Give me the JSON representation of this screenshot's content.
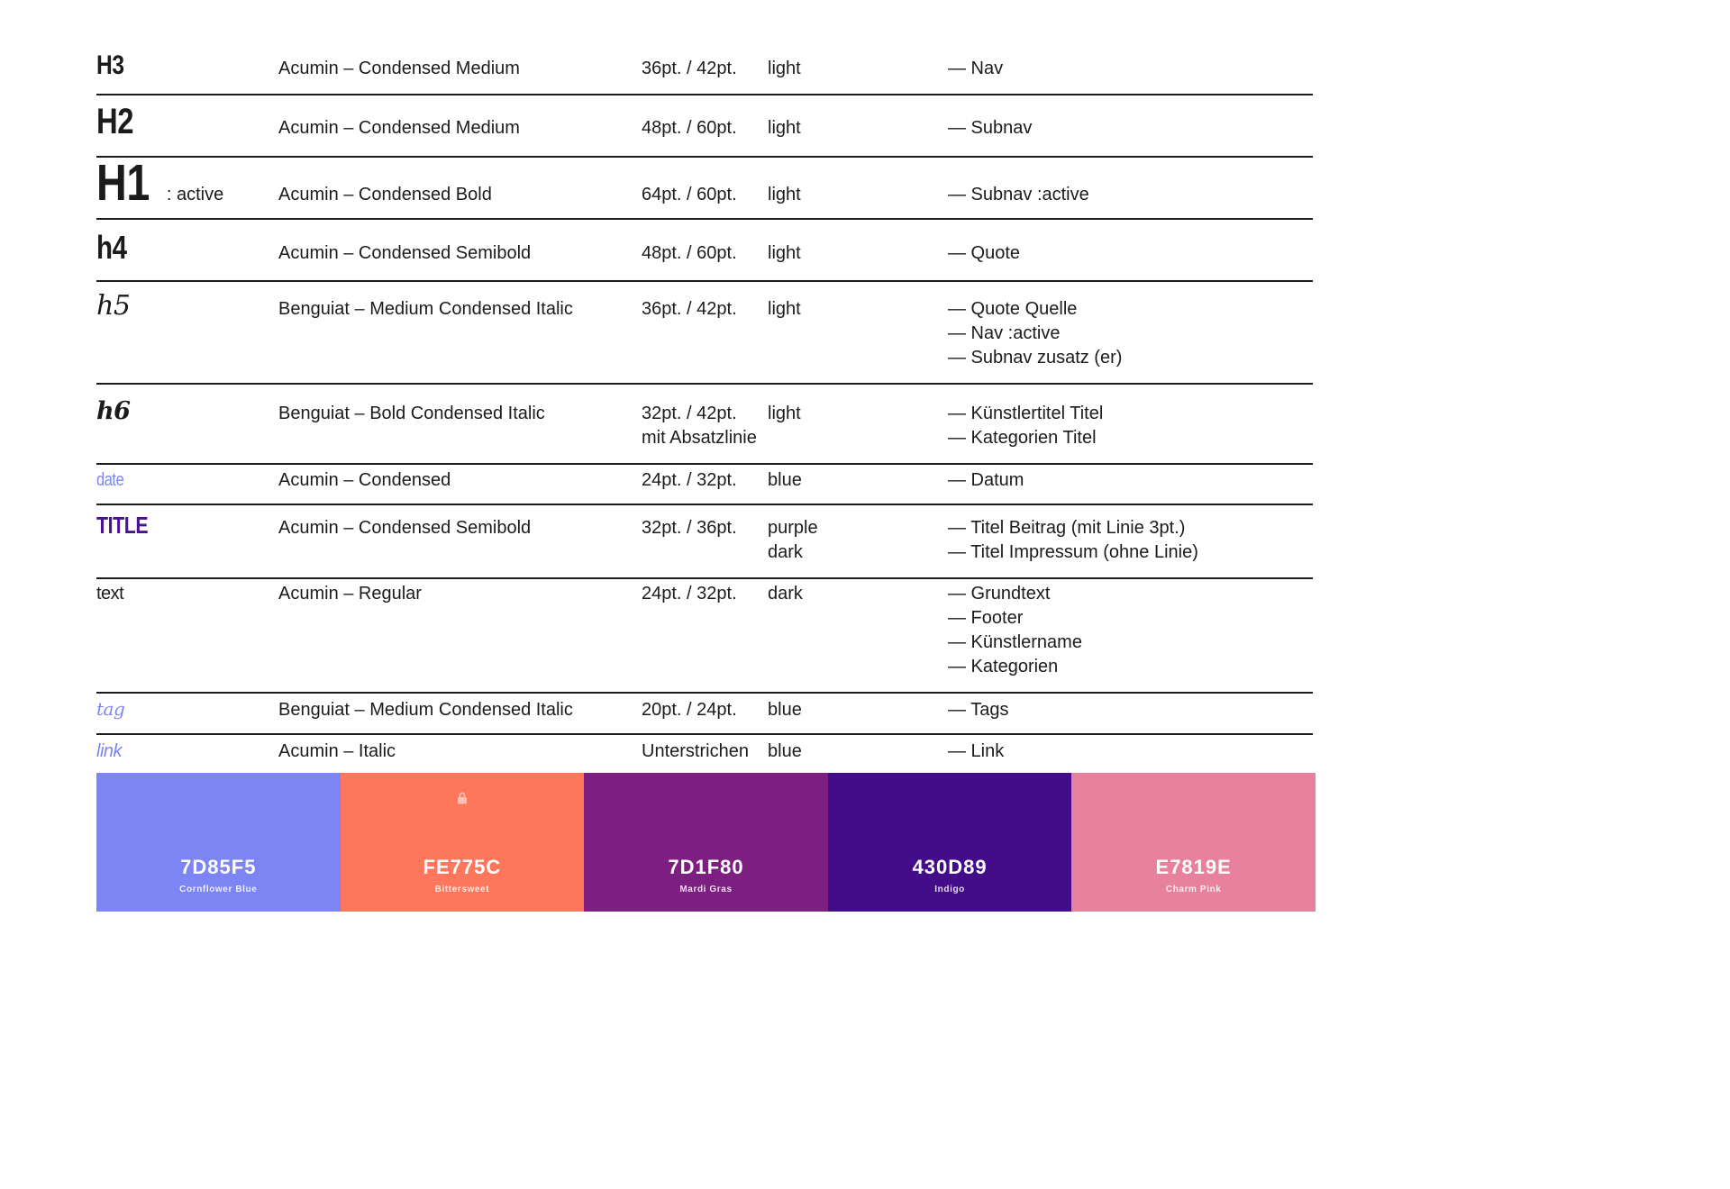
{
  "table": {
    "rows": [
      {
        "id": "h3",
        "label": "H3",
        "font": "Acumin – Condensed Medium",
        "size_lines": [
          "36pt. / 42pt."
        ],
        "color_lines": [
          "light"
        ],
        "usages": [
          "— Nav"
        ]
      },
      {
        "id": "h2",
        "label": "H2",
        "font": "Acumin – Condensed Medium",
        "size_lines": [
          "48pt. / 60pt."
        ],
        "color_lines": [
          "light"
        ],
        "usages": [
          "— Subnav"
        ]
      },
      {
        "id": "h1",
        "label": "H1",
        "suffix": ": active",
        "font": "Acumin – Condensed Bold",
        "size_lines": [
          "64pt. / 60pt."
        ],
        "color_lines": [
          "light"
        ],
        "usages": [
          "— Subnav :active"
        ]
      },
      {
        "id": "h4",
        "label": "h4",
        "font": "Acumin – Condensed Semibold",
        "size_lines": [
          "48pt. / 60pt."
        ],
        "color_lines": [
          "light"
        ],
        "usages": [
          "— Quote"
        ]
      },
      {
        "id": "h5",
        "label": "h5",
        "font": "Benguiat – Medium Condensed Italic",
        "size_lines": [
          "36pt. / 42pt."
        ],
        "color_lines": [
          "light"
        ],
        "usages": [
          "— Quote Quelle",
          "— Nav :active",
          "— Subnav zusatz (er)"
        ]
      },
      {
        "id": "h6",
        "label": "h6",
        "font": "Benguiat – Bold Condensed Italic",
        "size_lines": [
          "32pt. / 42pt.",
          "mit Absatzlinie"
        ],
        "color_lines": [
          "light"
        ],
        "usages": [
          "— Künstlertitel Titel",
          "— Kategorien Titel"
        ]
      },
      {
        "id": "date",
        "label": "date",
        "font": "Acumin – Condensed",
        "size_lines": [
          "24pt. / 32pt."
        ],
        "color_lines": [
          "blue"
        ],
        "usages": [
          "— Datum"
        ]
      },
      {
        "id": "title",
        "label": "TITLE",
        "font": "Acumin – Condensed Semibold",
        "size_lines": [
          "32pt. / 36pt."
        ],
        "color_lines": [
          "purple",
          "dark"
        ],
        "usages": [
          "— Titel Beitrag (mit Linie 3pt.)",
          "— Titel Impressum (ohne Linie)"
        ]
      },
      {
        "id": "text",
        "label": "text",
        "font": "Acumin – Regular",
        "size_lines": [
          "24pt. / 32pt."
        ],
        "color_lines": [
          "dark"
        ],
        "usages": [
          "— Grundtext",
          "— Footer",
          "— Künstlername",
          "— Kategorien"
        ]
      },
      {
        "id": "tag",
        "label": "tag",
        "font": "Benguiat – Medium Condensed Italic",
        "size_lines": [
          "20pt. / 24pt."
        ],
        "color_lines": [
          "blue"
        ],
        "usages": [
          "— Tags"
        ]
      },
      {
        "id": "link",
        "label": "link",
        "font": "Acumin – Italic",
        "size_lines": [
          "Unterstrichen"
        ],
        "color_lines": [
          "blue"
        ],
        "usages": [
          "— Link"
        ]
      }
    ]
  },
  "palette": {
    "swatches": [
      {
        "hex": "7D85F5",
        "name": "Cornflower Blue",
        "color": "#7D85F5",
        "locked": false
      },
      {
        "hex": "FE775C",
        "name": "Bittersweet",
        "color": "#FE775C",
        "locked": true
      },
      {
        "hex": "7D1F80",
        "name": "Mardi Gras",
        "color": "#7D1F80",
        "locked": false
      },
      {
        "hex": "430D89",
        "name": "Indigo",
        "color": "#430D89",
        "locked": false
      },
      {
        "hex": "E7819E",
        "name": "Charm Pink",
        "color": "#E7819E",
        "locked": false
      }
    ]
  },
  "colors": {
    "accent_blue": "#7d85f5",
    "accent_purple": "#4a1292",
    "text_dark": "#1b1b1b",
    "rule": "#1c1c1c"
  }
}
